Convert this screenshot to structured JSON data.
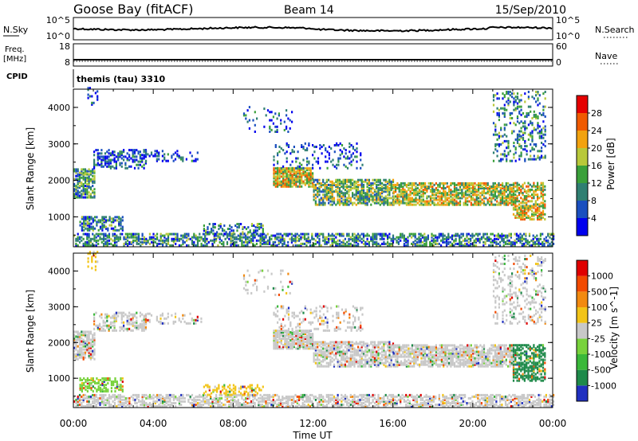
{
  "header": {
    "station": "Goose Bay (fitACF)",
    "beam": "Beam 14",
    "date": "15/Sep/2010"
  },
  "top_panels": {
    "nsky_label": "N.Sky",
    "nsky_ticks": [
      "10^5",
      "10^0"
    ],
    "nsearch_label": "N.Search",
    "nsearch_ticks": [
      "10^5",
      "10^0"
    ],
    "freq_label_1": "Freq.",
    "freq_label_2": "[MHz]",
    "freq_ticks": [
      "18",
      "8"
    ],
    "nave_label": "Nave",
    "nave_ticks": [
      "60",
      "0"
    ],
    "cpid_label": "CPID",
    "cpid_value": "themis (tau) 3310"
  },
  "chart_data": [
    {
      "type": "heatmap",
      "name": "power",
      "ylabel": "Slant Range [km]",
      "xlabel": "",
      "xlim": [
        0,
        24
      ],
      "ylim": [
        180,
        4500
      ],
      "yticks": [
        "1000",
        "2000",
        "3000",
        "4000"
      ],
      "colorbar": {
        "label": "Power [dB]",
        "ticks": [
          "4",
          "8",
          "12",
          "16",
          "20",
          "24",
          "28"
        ],
        "colors": [
          "#0000ee",
          "#1a4fbf",
          "#2f7f72",
          "#3aa03a",
          "#b8c83a",
          "#f2a20f",
          "#f05a00",
          "#e50000"
        ]
      },
      "regions": [
        {
          "t0": 0.0,
          "t1": 1.1,
          "r0": 1500,
          "r1": 2300,
          "density": 0.7,
          "level": 0.35
        },
        {
          "t0": 1.0,
          "t1": 3.6,
          "r0": 2300,
          "r1": 2800,
          "density": 0.45,
          "level": 0.2
        },
        {
          "t0": 3.5,
          "t1": 6.4,
          "r0": 2500,
          "r1": 2800,
          "density": 0.25,
          "level": 0.15
        },
        {
          "t0": 0.3,
          "t1": 2.5,
          "r0": 600,
          "r1": 1000,
          "density": 0.5,
          "level": 0.3
        },
        {
          "t0": 0.0,
          "t1": 24.0,
          "r0": 180,
          "r1": 500,
          "density": 0.55,
          "level": 0.3
        },
        {
          "t0": 6.5,
          "t1": 9.5,
          "r0": 500,
          "r1": 800,
          "density": 0.35,
          "level": 0.3
        },
        {
          "t0": 10.0,
          "t1": 12.0,
          "r0": 1800,
          "r1": 2300,
          "density": 0.85,
          "level": 0.6
        },
        {
          "t0": 12.0,
          "t1": 16.0,
          "r0": 1300,
          "r1": 2000,
          "density": 0.65,
          "level": 0.45
        },
        {
          "t0": 16.0,
          "t1": 22.0,
          "r0": 1300,
          "r1": 1900,
          "density": 0.7,
          "level": 0.55
        },
        {
          "t0": 22.0,
          "t1": 23.6,
          "r0": 900,
          "r1": 1900,
          "density": 0.6,
          "level": 0.6
        },
        {
          "t0": 21.0,
          "t1": 23.6,
          "r0": 2500,
          "r1": 4400,
          "density": 0.25,
          "level": 0.3
        },
        {
          "t0": 10.0,
          "t1": 14.5,
          "r0": 2300,
          "r1": 3000,
          "density": 0.18,
          "level": 0.2
        },
        {
          "t0": 0.7,
          "t1": 1.2,
          "r0": 4000,
          "r1": 4500,
          "density": 0.3,
          "level": 0.2
        },
        {
          "t0": 8.5,
          "t1": 11.0,
          "r0": 3300,
          "r1": 4000,
          "density": 0.1,
          "level": 0.2
        }
      ]
    },
    {
      "type": "heatmap",
      "name": "velocity",
      "ylabel": "Slant Range [km]",
      "xlabel": "Time UT",
      "xlim": [
        0,
        24
      ],
      "ylim": [
        180,
        4500
      ],
      "xticks": [
        "00:00",
        "04:00",
        "08:00",
        "12:00",
        "16:00",
        "20:00",
        "00:00"
      ],
      "yticks": [
        "1000",
        "2000",
        "3000",
        "4000"
      ],
      "colorbar": {
        "label": "Velocity [m s^-1]",
        "ticks": [
          "1000",
          "500",
          "100",
          "25",
          "-25",
          "-100",
          "-500",
          "-1000"
        ],
        "colors": [
          "#2030c0",
          "#1e8a4a",
          "#3ab83a",
          "#78d23c",
          "#c8c8c8",
          "#f2c418",
          "#f28a10",
          "#f24a00",
          "#e00000"
        ]
      },
      "regions": [
        {
          "t0": 0.0,
          "t1": 1.1,
          "r0": 1500,
          "r1": 2300,
          "density": 0.7,
          "level": 0.5
        },
        {
          "t0": 1.0,
          "t1": 3.6,
          "r0": 2300,
          "r1": 2800,
          "density": 0.45,
          "level": 0.5
        },
        {
          "t0": 3.5,
          "t1": 6.4,
          "r0": 2500,
          "r1": 2800,
          "density": 0.25,
          "level": 0.5
        },
        {
          "t0": 0.3,
          "t1": 2.5,
          "r0": 600,
          "r1": 1000,
          "density": 0.5,
          "level": 0.35
        },
        {
          "t0": 0.0,
          "t1": 24.0,
          "r0": 180,
          "r1": 500,
          "density": 0.55,
          "level": 0.55
        },
        {
          "t0": 6.5,
          "t1": 9.5,
          "r0": 500,
          "r1": 800,
          "density": 0.35,
          "level": 0.65
        },
        {
          "t0": 10.0,
          "t1": 12.0,
          "r0": 1800,
          "r1": 2300,
          "density": 0.85,
          "level": 0.5
        },
        {
          "t0": 12.0,
          "t1": 16.0,
          "r0": 1300,
          "r1": 2000,
          "density": 0.65,
          "level": 0.5
        },
        {
          "t0": 16.0,
          "t1": 22.0,
          "r0": 1300,
          "r1": 1900,
          "density": 0.7,
          "level": 0.5
        },
        {
          "t0": 22.0,
          "t1": 23.6,
          "r0": 900,
          "r1": 1900,
          "density": 0.6,
          "level": 0.2
        },
        {
          "t0": 21.0,
          "t1": 23.6,
          "r0": 2500,
          "r1": 4400,
          "density": 0.25,
          "level": 0.45
        },
        {
          "t0": 10.0,
          "t1": 14.5,
          "r0": 2300,
          "r1": 3000,
          "density": 0.18,
          "level": 0.5
        },
        {
          "t0": 0.7,
          "t1": 1.2,
          "r0": 4000,
          "r1": 4500,
          "density": 0.3,
          "level": 0.6
        },
        {
          "t0": 8.5,
          "t1": 11.0,
          "r0": 3300,
          "r1": 4000,
          "density": 0.1,
          "level": 0.5
        }
      ]
    }
  ]
}
